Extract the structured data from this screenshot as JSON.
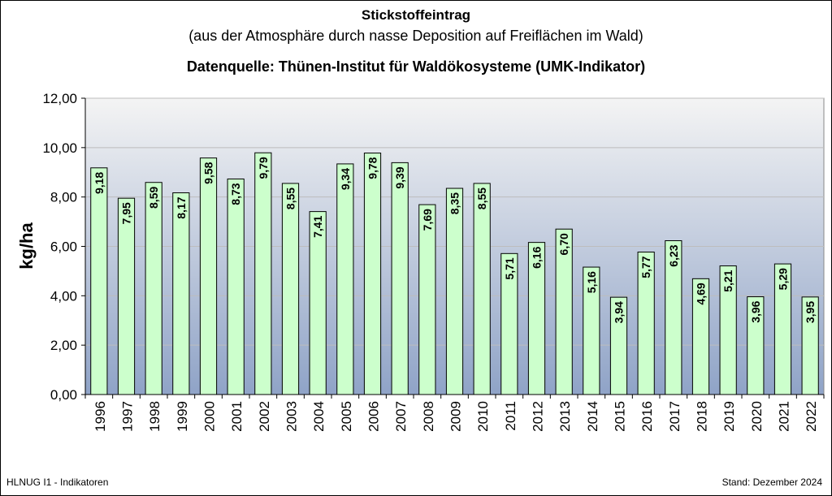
{
  "chart_data": {
    "type": "bar",
    "title": "Stickstoffeintrag",
    "subtitle": "(aus der Atmosphäre durch nasse Deposition auf Freiflächen im Wald)",
    "source": "Datenquelle:  Thünen-Institut für Waldökosysteme (UMK-Indikator)",
    "xlabel": "",
    "ylabel": "kg/ha",
    "ylim": [
      0,
      12
    ],
    "yticks": [
      "0,00",
      "2,00",
      "4,00",
      "6,00",
      "8,00",
      "10,00",
      "12,00"
    ],
    "categories": [
      "1996",
      "1997",
      "1998",
      "1999",
      "2000",
      "2001",
      "2002",
      "2003",
      "2004",
      "2005",
      "2006",
      "2007",
      "2008",
      "2009",
      "2010",
      "2011",
      "2012",
      "2013",
      "2014",
      "2015",
      "2016",
      "2017",
      "2018",
      "2019",
      "2020",
      "2021",
      "2022"
    ],
    "values": [
      9.18,
      7.95,
      8.59,
      8.17,
      9.58,
      8.73,
      9.79,
      8.55,
      7.41,
      9.34,
      9.78,
      9.39,
      7.69,
      8.35,
      8.55,
      5.71,
      6.16,
      6.7,
      5.16,
      3.94,
      5.77,
      6.23,
      4.69,
      5.21,
      3.96,
      5.29,
      3.95
    ],
    "value_labels": [
      "9,18",
      "7,95",
      "8,59",
      "8,17",
      "9,58",
      "8,73",
      "9,79",
      "8,55",
      "7,41",
      "9,34",
      "9,78",
      "9,39",
      "7,69",
      "8,35",
      "8,55",
      "5,71",
      "6,16",
      "6,70",
      "5,16",
      "3,94",
      "5,77",
      "6,23",
      "4,69",
      "5,21",
      "3,96",
      "5,29",
      "3,95"
    ],
    "grid": true,
    "colors": {
      "bar_fill": "#ccffcc",
      "bar_stroke": "#000000",
      "plot_top": "#f4f4f4",
      "plot_bottom": "#8fa3c7"
    }
  },
  "footer": {
    "left": "HLNUG I1 - Indikatoren",
    "right": "Stand: Dezember 2024"
  }
}
